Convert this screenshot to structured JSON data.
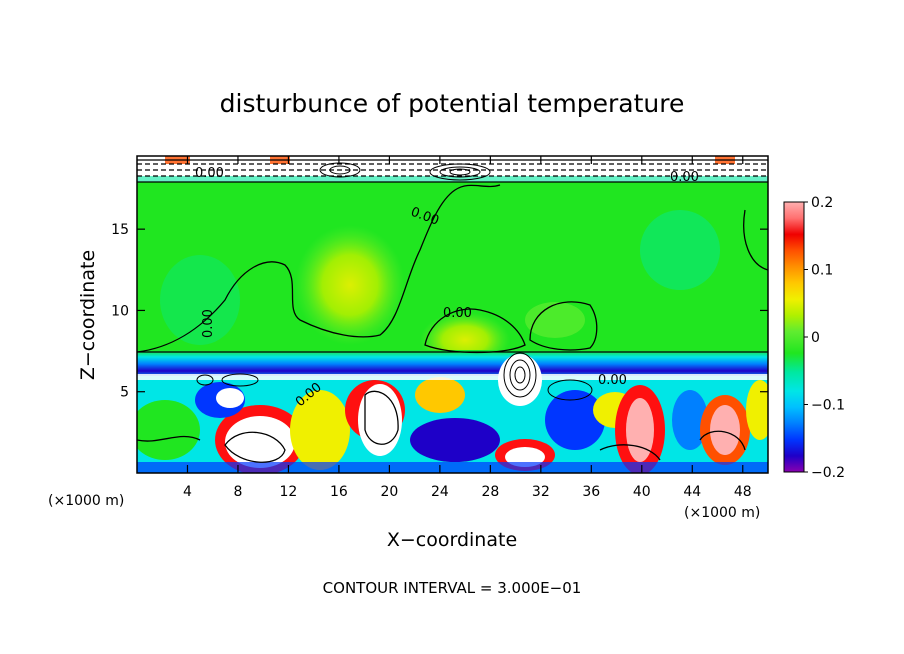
{
  "chart_data": {
    "type": "heatmap",
    "title": "disturbunce of potential temperature",
    "xlabel": "X−coordinate",
    "ylabel": "Z−coordinate",
    "x_unit_label": "(×1000 m)",
    "y_unit_label": "(×1000 m)",
    "xlim": [
      0,
      50
    ],
    "ylim": [
      0,
      19.5
    ],
    "x_ticks": [
      4,
      8,
      12,
      16,
      20,
      24,
      28,
      32,
      36,
      40,
      44,
      48
    ],
    "y_ticks": [
      5,
      10,
      15
    ],
    "colorbar": {
      "range": [
        -0.2,
        0.2
      ],
      "ticks": [
        0.2,
        0.1,
        0,
        -0.1,
        -0.2
      ],
      "tick_labels": [
        "0.2",
        "0.1",
        "0",
        "−0.1",
        "−0.2"
      ],
      "colors": [
        "#8a00b0",
        "#1e00c8",
        "#0036ff",
        "#0080ff",
        "#00c0ff",
        "#00e6e6",
        "#00e8a0",
        "#20e620",
        "#60ec30",
        "#b0f000",
        "#f0f000",
        "#ffc800",
        "#ff9000",
        "#ff5000",
        "#ff1010",
        "#f00000",
        "#ff7070",
        "#ffb0b0"
      ]
    },
    "contour_labels": [
      "0.00",
      "0.00",
      "0.00",
      "0.00",
      "0.00",
      "0.00",
      "0.00"
    ],
    "note": "CONTOUR INTERVAL = 3.000E−01"
  }
}
